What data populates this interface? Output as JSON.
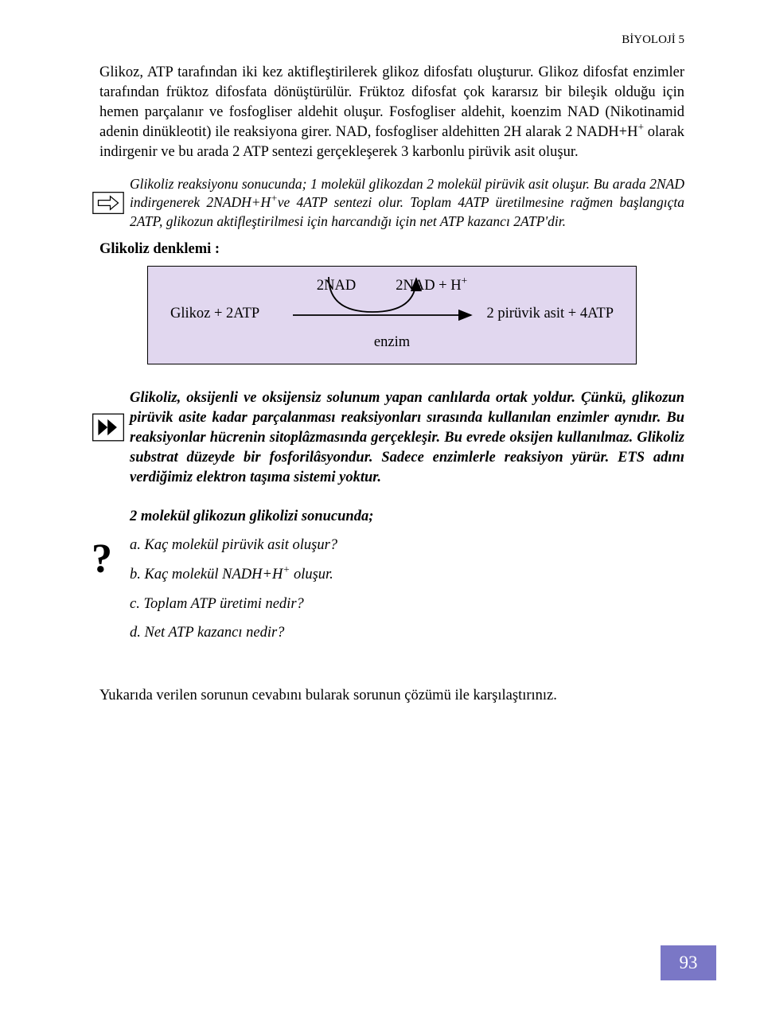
{
  "header": {
    "subject": "BİYOLOJİ  5"
  },
  "para1": "Glikoz, ATP tarafından iki kez aktifleştirilerek glikoz difosfatı oluşturur. Glikoz difosfat enzimler tarafından früktoz difosfata dönüştürülür. Früktoz difosfat çok kararsız bir bileşik olduğu için hemen parçalanır ve fosfogliser aldehit oluşur. Fosfogliser aldehit, koenzim NAD (Nikotinamid adenin dinükleotit) ile reaksiyona girer. NAD, fosfogliser aldehitten 2H alarak 2 NADH+H⁺ olarak  indirgenir ve bu arada 2 ATP sentezi gerçekleşerek 3 karbonlu pirüvik asit oluşur.",
  "note1": "Glikoliz reaksiyonu sonucunda; 1 molekül glikozdan 2 molekül pirüvik asit oluşur. Bu arada 2NAD indirgenerek 2NADH+H⁺ve 4ATP sentezi olur. Toplam  4ATP üretilmesine rağmen başlangıçta 2ATP, glikozun aktifleştirilmesi için harcandığı için net ATP kazancı 2ATP'dir.",
  "heading": "Glikoliz denklemi :",
  "diagram": {
    "nad_left": "2NAD",
    "nad_right": "2NAD + H⁺",
    "input": "Glikoz + 2ATP",
    "output": "2 pirüvik asit + 4ATP",
    "enzyme": "enzim",
    "box_bg": "#e1d7ef",
    "border": "#000000"
  },
  "bold_block": "Glikoliz, oksijenli ve oksijensiz solunum yapan canlılarda ortak yoldur. Çünkü, glikozun pirüvik asite kadar parçalanması reaksiyonları sırasında kullanılan enzimler aynıdır. Bu reaksiyonlar hücrenin sitoplâzmasında gerçekleşir. Bu evrede oksijen kullanılmaz. Glikoliz  substrat düzeyde bir fosforilâsyondur. Sadece enzimlerle reaksiyon  yürür. ETS adını verdiğimiz elektron taşıma sistemi yoktur.",
  "questions": {
    "lead": "2 molekül glikozun glikolizi sonucunda;",
    "a": "a. Kaç molekül pirüvik asit oluşur?",
    "b": "b. Kaç molekül NADH+H⁺ oluşur.",
    "c": "c. Toplam ATP üretimi  nedir?",
    "d": "d. Net ATP  kazancı nedir?"
  },
  "last": "Yukarıda verilen sorunun cevabını bularak sorunun çözümü ile karşılaştırınız.",
  "pagenum": "93",
  "icons": {
    "question_mark": "?"
  }
}
